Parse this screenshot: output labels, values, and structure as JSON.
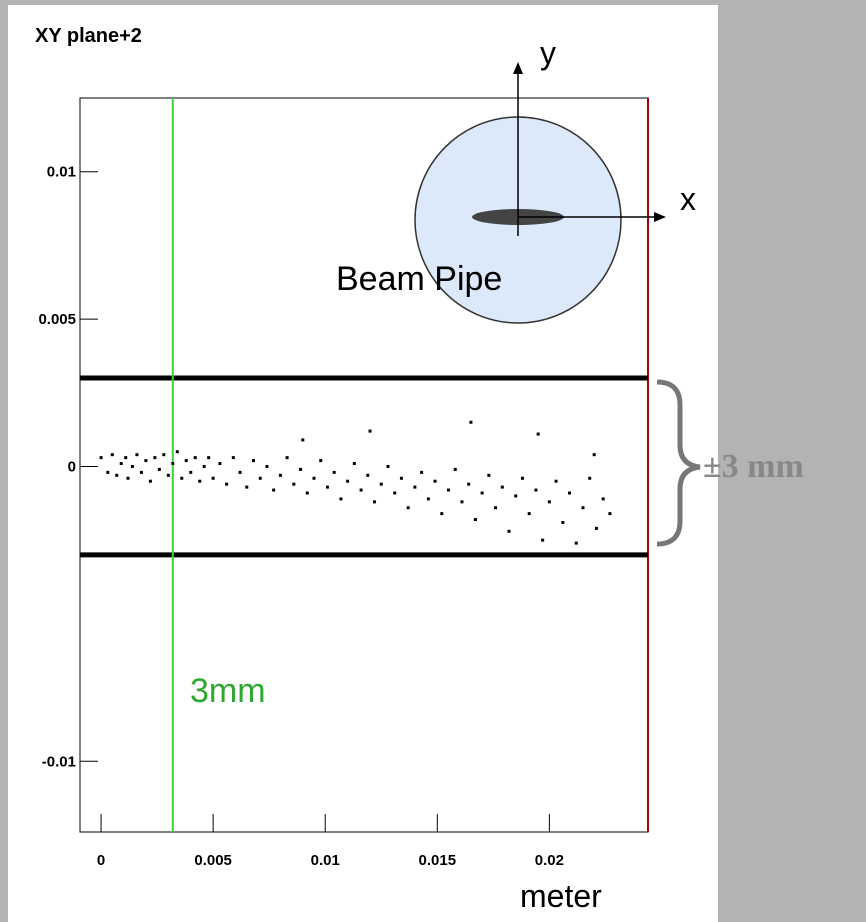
{
  "chart_data": {
    "type": "scatter",
    "title": "XY plane+2",
    "xlabel": "meter",
    "xlim": [
      -0.00094,
      0.0244
    ],
    "ylim": [
      -0.0124,
      0.0125
    ],
    "xticks": [
      0,
      0.005,
      0.01,
      0.015,
      0.02
    ],
    "yticks": [
      0.01,
      0.005,
      0,
      -0.01
    ],
    "color": "#000000",
    "hlines": [
      0.003,
      -0.003
    ],
    "vline": {
      "value": 0.0032,
      "label": "3mm",
      "color": "#3cd33c"
    },
    "bracket_label": "±3 mm",
    "diagram": {
      "y": "y",
      "x": "x",
      "label": "Beam Pipe"
    },
    "x": [
      0.0,
      0.0003,
      0.0005,
      0.0007,
      0.0009,
      0.0011,
      0.0012,
      0.0014,
      0.0016,
      0.0018,
      0.002,
      0.0022,
      0.0024,
      0.0026,
      0.0028,
      0.003,
      0.0032,
      0.0034,
      0.0036,
      0.0038,
      0.004,
      0.0042,
      0.0044,
      0.0046,
      0.0048,
      0.005,
      0.0053,
      0.0056,
      0.0059,
      0.0062,
      0.0065,
      0.0068,
      0.0071,
      0.0074,
      0.0077,
      0.008,
      0.0083,
      0.0086,
      0.0089,
      0.0092,
      0.0095,
      0.0098,
      0.0101,
      0.0104,
      0.0107,
      0.011,
      0.0113,
      0.0116,
      0.0119,
      0.0122,
      0.0125,
      0.0128,
      0.0131,
      0.0134,
      0.0137,
      0.014,
      0.0143,
      0.0146,
      0.0149,
      0.0152,
      0.0155,
      0.0158,
      0.0161,
      0.0164,
      0.0167,
      0.017,
      0.0173,
      0.0176,
      0.0179,
      0.0182,
      0.0185,
      0.0188,
      0.0191,
      0.0194,
      0.0197,
      0.02,
      0.0203,
      0.0206,
      0.0209,
      0.0212,
      0.0215,
      0.0218,
      0.0221,
      0.0224,
      0.0227,
      0.0165,
      0.012,
      0.009,
      0.0195,
      0.022
    ],
    "values": [
      0.0003,
      -0.0002,
      0.0004,
      -0.0003,
      0.0001,
      0.0003,
      -0.0004,
      0.0,
      0.0004,
      -0.0002,
      0.0002,
      -0.0005,
      0.0003,
      -0.0001,
      0.0004,
      -0.0003,
      0.0001,
      0.0005,
      -0.0004,
      0.0002,
      -0.0002,
      0.0003,
      -0.0005,
      0.0,
      0.0003,
      -0.0004,
      0.0001,
      -0.0006,
      0.0003,
      -0.0002,
      -0.0007,
      0.0002,
      -0.0004,
      0.0,
      -0.0008,
      -0.0003,
      0.0003,
      -0.0006,
      -0.0001,
      -0.0009,
      -0.0004,
      0.0002,
      -0.0007,
      -0.0002,
      -0.0011,
      -0.0005,
      0.0001,
      -0.0008,
      -0.0003,
      -0.0012,
      -0.0006,
      0.0,
      -0.0009,
      -0.0004,
      -0.0014,
      -0.0007,
      -0.0002,
      -0.0011,
      -0.0005,
      -0.0016,
      -0.0008,
      -0.0001,
      -0.0012,
      -0.0006,
      -0.0018,
      -0.0009,
      -0.0003,
      -0.0014,
      -0.0007,
      -0.0022,
      -0.001,
      -0.0004,
      -0.0016,
      -0.0008,
      -0.0025,
      -0.0012,
      -0.0005,
      -0.0019,
      -0.0009,
      -0.0026,
      -0.0014,
      -0.0004,
      -0.0021,
      -0.0011,
      -0.0016,
      0.0015,
      0.0012,
      0.0009,
      0.0011,
      0.0004
    ]
  }
}
